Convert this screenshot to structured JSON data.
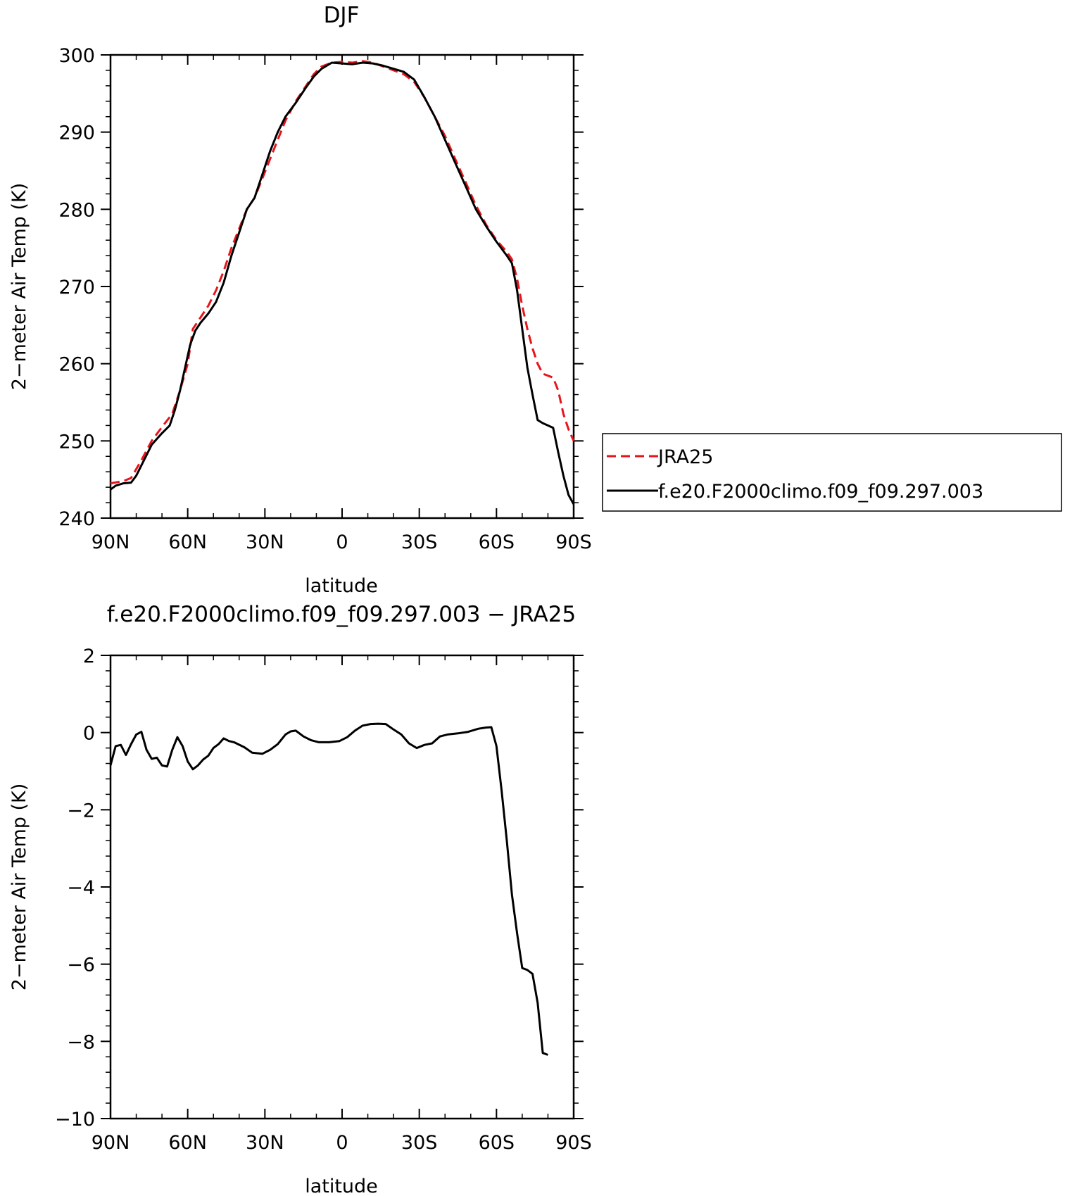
{
  "chart_data": [
    {
      "type": "line",
      "title": "DJF",
      "xlabel": "latitude",
      "ylabel": "2−meter Air Temp (K)",
      "xlim": [
        -90,
        90
      ],
      "ylim": [
        240,
        300
      ],
      "x_ticks": [
        -90,
        -60,
        -30,
        0,
        30,
        60,
        90
      ],
      "x_tick_labels": [
        "90N",
        "60N",
        "30N",
        "0",
        "30S",
        "60S",
        "90S"
      ],
      "y_ticks": [
        240,
        250,
        260,
        270,
        280,
        290,
        300
      ],
      "y_tick_labels": [
        "240",
        "250",
        "260",
        "270",
        "280",
        "290",
        "300"
      ],
      "grid": false,
      "legend_position": "right",
      "series": [
        {
          "name": "JRA25",
          "color": "#e8141c",
          "dash": "dashed",
          "points": [
            [
              -90,
              244.5
            ],
            [
              -85,
              244.8
            ],
            [
              -82,
              245.2
            ],
            [
              -78,
              247.5
            ],
            [
              -74,
              250.0
            ],
            [
              -70,
              251.8
            ],
            [
              -66,
              253.5
            ],
            [
              -63,
              256.5
            ],
            [
              -60,
              260.0
            ],
            [
              -58,
              264.5
            ],
            [
              -55,
              266.0
            ],
            [
              -52,
              267.5
            ],
            [
              -49,
              269.5
            ],
            [
              -46,
              272.0
            ],
            [
              -43,
              275.0
            ],
            [
              -40,
              277.5
            ],
            [
              -37,
              280.0
            ],
            [
              -34,
              281.5
            ],
            [
              -31,
              284.0
            ],
            [
              -28,
              286.5
            ],
            [
              -25,
              289.0
            ],
            [
              -22,
              291.5
            ],
            [
              -18,
              294.0
            ],
            [
              -14,
              296.0
            ],
            [
              -11,
              297.5
            ],
            [
              -8,
              298.5
            ],
            [
              -4,
              299.0
            ],
            [
              0,
              299.1
            ],
            [
              4,
              299.0
            ],
            [
              8,
              299.2
            ],
            [
              12,
              299.0
            ],
            [
              16,
              298.5
            ],
            [
              20,
              298.0
            ],
            [
              24,
              297.5
            ],
            [
              28,
              296.5
            ],
            [
              32,
              294.5
            ],
            [
              36,
              292.0
            ],
            [
              40,
              289.5
            ],
            [
              44,
              286.5
            ],
            [
              48,
              283.5
            ],
            [
              52,
              280.5
            ],
            [
              56,
              278.0
            ],
            [
              60,
              276.0
            ],
            [
              64,
              274.5
            ],
            [
              66,
              273.5
            ],
            [
              68,
              271.0
            ],
            [
              70,
              267.5
            ],
            [
              72,
              264.5
            ],
            [
              74,
              262.0
            ],
            [
              76,
              260.0
            ],
            [
              78,
              258.7
            ],
            [
              82,
              258.2
            ],
            [
              84,
              256.5
            ],
            [
              86,
              253.5
            ],
            [
              88,
              251.5
            ],
            [
              90,
              250.0
            ]
          ]
        },
        {
          "name": "f.e20.F2000climo.f09_f09.297.003",
          "color": "#000000",
          "dash": "solid",
          "points": [
            [
              -90,
              243.7
            ],
            [
              -88,
              244.2
            ],
            [
              -85,
              244.5
            ],
            [
              -82,
              244.6
            ],
            [
              -80,
              245.5
            ],
            [
              -77,
              247.5
            ],
            [
              -74,
              249.5
            ],
            [
              -70,
              251.0
            ],
            [
              -67,
              252.0
            ],
            [
              -65,
              254.0
            ],
            [
              -63,
              256.5
            ],
            [
              -61,
              259.5
            ],
            [
              -59,
              262.5
            ],
            [
              -57,
              264.3
            ],
            [
              -55,
              265.3
            ],
            [
              -52,
              266.5
            ],
            [
              -49,
              268.0
            ],
            [
              -46,
              270.5
            ],
            [
              -43,
              274.0
            ],
            [
              -40,
              277.0
            ],
            [
              -37,
              280.0
            ],
            [
              -34,
              281.5
            ],
            [
              -31,
              284.5
            ],
            [
              -28,
              287.5
            ],
            [
              -25,
              290.0
            ],
            [
              -22,
              292.0
            ],
            [
              -18,
              293.8
            ],
            [
              -14,
              295.8
            ],
            [
              -11,
              297.2
            ],
            [
              -8,
              298.2
            ],
            [
              -4,
              299.0
            ],
            [
              0,
              298.9
            ],
            [
              4,
              298.8
            ],
            [
              8,
              299.0
            ],
            [
              12,
              298.9
            ],
            [
              16,
              298.6
            ],
            [
              20,
              298.2
            ],
            [
              24,
              297.8
            ],
            [
              28,
              296.8
            ],
            [
              32,
              294.5
            ],
            [
              36,
              292.0
            ],
            [
              40,
              289.0
            ],
            [
              44,
              286.0
            ],
            [
              48,
              283.0
            ],
            [
              52,
              280.0
            ],
            [
              56,
              277.8
            ],
            [
              60,
              275.8
            ],
            [
              64,
              274.0
            ],
            [
              66,
              273.0
            ],
            [
              68,
              269.5
            ],
            [
              70,
              264.5
            ],
            [
              72,
              259.5
            ],
            [
              74,
              256.0
            ],
            [
              76,
              252.7
            ],
            [
              78,
              252.3
            ],
            [
              80,
              252.0
            ],
            [
              82,
              251.7
            ],
            [
              84,
              248.5
            ],
            [
              86,
              245.5
            ],
            [
              88,
              243.0
            ],
            [
              90,
              241.8
            ]
          ]
        }
      ]
    },
    {
      "type": "line",
      "title": "f.e20.F2000climo.f09_f09.297.003 − JRA25",
      "xlabel": "latitude",
      "ylabel": "2−meter Air Temp (K)",
      "xlim": [
        -90,
        90
      ],
      "ylim": [
        -10,
        2
      ],
      "x_ticks": [
        -90,
        -60,
        -30,
        0,
        30,
        60,
        90
      ],
      "x_tick_labels": [
        "90N",
        "60N",
        "30N",
        "0",
        "30S",
        "60S",
        "90S"
      ],
      "y_ticks": [
        -10,
        -8,
        -6,
        -4,
        -2,
        0,
        2
      ],
      "y_tick_labels": [
        "−10",
        "−8",
        "−6",
        "−4",
        "−2",
        "0",
        "2"
      ],
      "grid": false,
      "series": [
        {
          "color": "#000000",
          "dash": "solid",
          "points": [
            [
              -90,
              -0.85
            ],
            [
              -88,
              -0.35
            ],
            [
              -86,
              -0.32
            ],
            [
              -84,
              -0.58
            ],
            [
              -82,
              -0.3
            ],
            [
              -80,
              -0.05
            ],
            [
              -78,
              0.02
            ],
            [
              -76,
              -0.45
            ],
            [
              -74,
              -0.68
            ],
            [
              -72,
              -0.65
            ],
            [
              -70,
              -0.85
            ],
            [
              -68,
              -0.88
            ],
            [
              -66,
              -0.45
            ],
            [
              -64,
              -0.12
            ],
            [
              -62,
              -0.35
            ],
            [
              -60,
              -0.75
            ],
            [
              -58,
              -0.95
            ],
            [
              -56,
              -0.85
            ],
            [
              -54,
              -0.7
            ],
            [
              -52,
              -0.6
            ],
            [
              -50,
              -0.4
            ],
            [
              -48,
              -0.3
            ],
            [
              -46,
              -0.15
            ],
            [
              -44,
              -0.22
            ],
            [
              -42,
              -0.25
            ],
            [
              -38,
              -0.38
            ],
            [
              -35,
              -0.52
            ],
            [
              -31,
              -0.55
            ],
            [
              -28,
              -0.45
            ],
            [
              -25,
              -0.3
            ],
            [
              -22,
              -0.05
            ],
            [
              -20,
              0.03
            ],
            [
              -18,
              0.05
            ],
            [
              -15,
              -0.1
            ],
            [
              -12,
              -0.2
            ],
            [
              -9,
              -0.25
            ],
            [
              -5,
              -0.25
            ],
            [
              -1,
              -0.22
            ],
            [
              2,
              -0.12
            ],
            [
              5,
              0.05
            ],
            [
              8,
              0.18
            ],
            [
              11,
              0.22
            ],
            [
              14,
              0.23
            ],
            [
              17,
              0.22
            ],
            [
              20,
              0.08
            ],
            [
              23,
              -0.05
            ],
            [
              26,
              -0.28
            ],
            [
              29,
              -0.4
            ],
            [
              32,
              -0.32
            ],
            [
              35,
              -0.28
            ],
            [
              38,
              -0.1
            ],
            [
              41,
              -0.05
            ],
            [
              45,
              -0.02
            ],
            [
              49,
              0.02
            ],
            [
              53,
              0.1
            ],
            [
              56,
              0.13
            ],
            [
              58,
              0.14
            ],
            [
              60,
              -0.35
            ],
            [
              62,
              -1.5
            ],
            [
              64,
              -2.8
            ],
            [
              66,
              -4.2
            ],
            [
              68,
              -5.2
            ],
            [
              70,
              -6.1
            ],
            [
              72,
              -6.15
            ],
            [
              74,
              -6.25
            ],
            [
              76,
              -7.0
            ],
            [
              78,
              -8.3
            ],
            [
              80,
              -8.35
            ]
          ]
        }
      ]
    }
  ]
}
